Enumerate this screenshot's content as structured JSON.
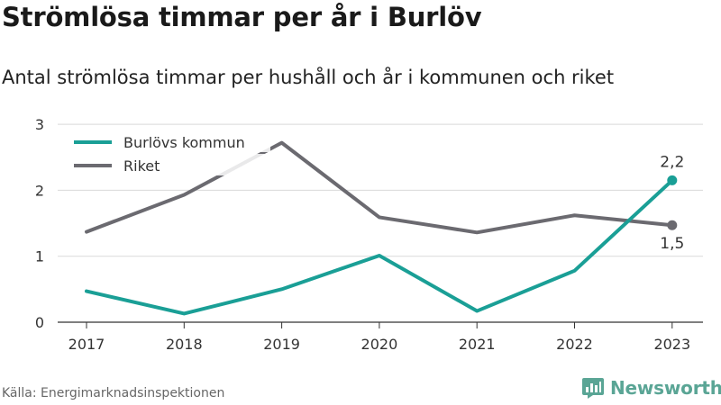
{
  "title": "Strömlösa timmar per år i Burlöv",
  "subtitle": "Antal strömlösa timmar per hushåll och år i kommunen och riket",
  "source": "Källa: Energimarknadsinspektionen",
  "brand": "Newsworthy",
  "colors": {
    "burlov": "#1a9f96",
    "riket": "#6b6a70",
    "grid": "#d9d9d9",
    "brand": "#5aa595"
  },
  "chart_data": {
    "type": "line",
    "x": [
      "2017",
      "2018",
      "2019",
      "2020",
      "2021",
      "2022",
      "2023"
    ],
    "ylim": [
      0,
      3
    ],
    "yticks": [
      "0",
      "1",
      "2",
      "3"
    ],
    "grid": true,
    "legend": "top-left",
    "series": [
      {
        "name": "Burlövs kommun",
        "values": [
          0.47,
          0.13,
          0.5,
          1.01,
          0.17,
          0.78,
          2.15
        ],
        "end_label": "2,2"
      },
      {
        "name": "Riket",
        "values": [
          1.37,
          1.93,
          2.72,
          1.59,
          1.36,
          1.62,
          1.47
        ],
        "end_label": "1,5"
      }
    ]
  }
}
